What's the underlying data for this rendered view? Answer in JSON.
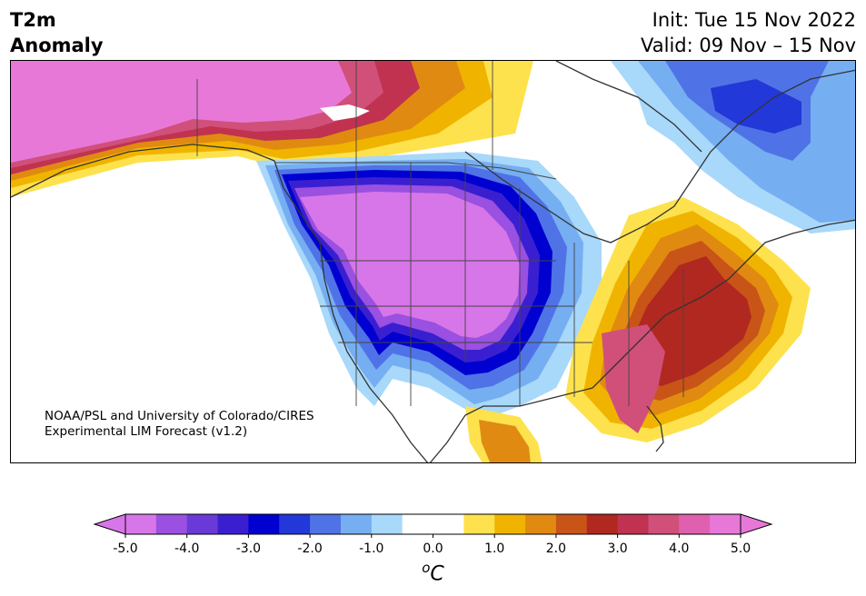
{
  "header": {
    "title_line1": "T2m",
    "title_line2": "Anomaly",
    "init": "Init: Tue 15 Nov 2022",
    "valid": "Valid: 09 Nov – 15 Nov"
  },
  "credit": {
    "line1": "NOAA/PSL and University of Colorado/CIRES",
    "line2": "Experimental LIM Forecast (v1.2)"
  },
  "colorbar": {
    "unit_base": "C",
    "unit_sup": "o",
    "ticks": [
      "-5.0",
      "-4.0",
      "-3.0",
      "-2.0",
      "-1.0",
      "0.0",
      "1.0",
      "2.0",
      "3.0",
      "4.0",
      "5.0"
    ],
    "colors": [
      "#d776e8",
      "#9a50e0",
      "#6a3ad8",
      "#3a1fd0",
      "#0000d0",
      "#2338d8",
      "#4f73e6",
      "#76aef2",
      "#a8d8fa",
      "#ffffff",
      "#ffffff",
      "#fde24e",
      "#f0b400",
      "#e08a12",
      "#c85418",
      "#b02820",
      "#c03250",
      "#d0507a",
      "#e060b0",
      "#e878d8"
    ],
    "min_color": "#d776e8",
    "max_color": "#e878d8"
  },
  "map": {
    "region": "North America",
    "field": "2m temperature anomaly",
    "features": [
      {
        "name": "alaska-warm",
        "color": "#e878d8"
      },
      {
        "name": "western-us-cold",
        "color": "#d776e8"
      },
      {
        "name": "cold-ring",
        "color": "#0000d0"
      },
      {
        "name": "southeast-warm",
        "color": "#b02820"
      },
      {
        "name": "quebec-cold",
        "color": "#2338d8"
      }
    ]
  }
}
